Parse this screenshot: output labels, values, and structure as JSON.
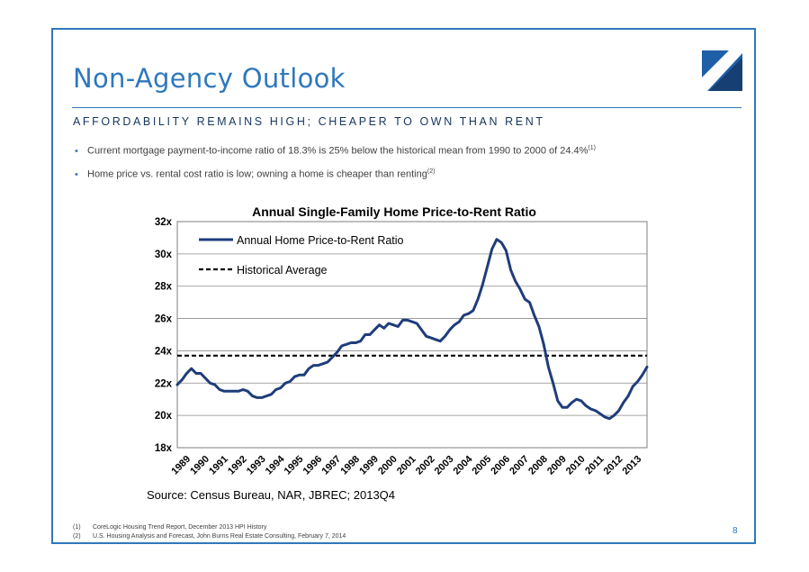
{
  "slide": {
    "title": "Non-Agency Outlook",
    "subtitle": "AFFORDABILITY REMAINS HIGH; CHEAPER TO OWN THAN RENT",
    "bullets": [
      {
        "text": "Current mortgage payment-to-income ratio of 18.3% is 25% below the historical mean from 1990 to 2000 of 24.4%",
        "ref": "(1)"
      },
      {
        "text": "Home price vs. rental cost ratio is low; owning a home is cheaper than renting",
        "ref": "(2)"
      }
    ],
    "footnotes": [
      {
        "num": "(1)",
        "text": "CoreLogic Housing Trend Report, December 2013 HPI History"
      },
      {
        "num": "(2)",
        "text": "U.S. Housing Analysis and Forecast, John Burns Real Estate Consulting, February 7, 2014"
      }
    ],
    "page_number": "8",
    "colors": {
      "accent": "#2f78bd",
      "navy": "#17365d",
      "series": "#1f3d7a"
    }
  },
  "chart_data": {
    "type": "line",
    "title": "Annual Single-Family Home Price-to-Rent Ratio",
    "source": "Source: Census Bureau, NAR, JBREC; 2013Q4",
    "xlabel": "",
    "ylabel": "",
    "ylim": [
      18,
      32
    ],
    "yticks": [
      "18x",
      "20x",
      "22x",
      "24x",
      "26x",
      "28x",
      "30x",
      "32x"
    ],
    "ytick_values": [
      18,
      20,
      22,
      24,
      26,
      28,
      30,
      32
    ],
    "xlim": [
      1989,
      2014
    ],
    "xticks": [
      "1989",
      "1990",
      "1991",
      "1992",
      "1993",
      "1994",
      "1995",
      "1996",
      "1997",
      "1998",
      "1999",
      "2000",
      "2001",
      "2002",
      "2003",
      "2004",
      "2005",
      "2006",
      "2007",
      "2008",
      "2009",
      "2010",
      "2011",
      "2012",
      "2013"
    ],
    "grid": true,
    "legend_position": "top-left",
    "historical_average": {
      "name": "Historical Average",
      "value": 23.7
    },
    "series": [
      {
        "name": "Annual Home Price-to-Rent Ratio",
        "x": [
          1989.0,
          1989.25,
          1989.5,
          1989.75,
          1990.0,
          1990.25,
          1990.5,
          1990.75,
          1991.0,
          1991.25,
          1991.5,
          1991.75,
          1992.0,
          1992.25,
          1992.5,
          1992.75,
          1993.0,
          1993.25,
          1993.5,
          1993.75,
          1994.0,
          1994.25,
          1994.5,
          1994.75,
          1995.0,
          1995.25,
          1995.5,
          1995.75,
          1996.0,
          1996.25,
          1996.5,
          1996.75,
          1997.0,
          1997.25,
          1997.5,
          1997.75,
          1998.0,
          1998.25,
          1998.5,
          1998.75,
          1999.0,
          1999.25,
          1999.5,
          1999.75,
          2000.0,
          2000.25,
          2000.5,
          2000.75,
          2001.0,
          2001.25,
          2001.5,
          2001.75,
          2002.0,
          2002.25,
          2002.5,
          2002.75,
          2003.0,
          2003.25,
          2003.5,
          2003.75,
          2004.0,
          2004.25,
          2004.5,
          2004.75,
          2005.0,
          2005.25,
          2005.5,
          2005.75,
          2006.0,
          2006.25,
          2006.5,
          2006.75,
          2007.0,
          2007.25,
          2007.5,
          2007.75,
          2008.0,
          2008.25,
          2008.5,
          2008.75,
          2009.0,
          2009.25,
          2009.5,
          2009.75,
          2010.0,
          2010.25,
          2010.5,
          2010.75,
          2011.0,
          2011.25,
          2011.5,
          2011.75,
          2012.0,
          2012.25,
          2012.5,
          2012.75,
          2013.0,
          2013.25,
          2013.5,
          2013.75,
          2014.0
        ],
        "y": [
          21.9,
          22.2,
          22.6,
          22.9,
          22.6,
          22.6,
          22.3,
          22.0,
          21.9,
          21.6,
          21.5,
          21.5,
          21.5,
          21.5,
          21.6,
          21.5,
          21.2,
          21.1,
          21.1,
          21.2,
          21.3,
          21.6,
          21.7,
          22.0,
          22.1,
          22.4,
          22.5,
          22.5,
          22.9,
          23.1,
          23.1,
          23.2,
          23.3,
          23.6,
          23.9,
          24.3,
          24.4,
          24.5,
          24.5,
          24.6,
          25.0,
          25.0,
          25.3,
          25.6,
          25.4,
          25.7,
          25.6,
          25.5,
          25.9,
          25.9,
          25.8,
          25.7,
          25.3,
          24.9,
          24.8,
          24.7,
          24.6,
          24.9,
          25.3,
          25.6,
          25.8,
          26.2,
          26.3,
          26.5,
          27.2,
          28.1,
          29.2,
          30.3,
          30.9,
          30.7,
          30.2,
          29.0,
          28.3,
          27.8,
          27.2,
          27.0,
          26.2,
          25.5,
          24.4,
          23.0,
          22.0,
          20.9,
          20.5,
          20.5,
          20.8,
          21.0,
          20.9,
          20.6,
          20.4,
          20.3,
          20.1,
          19.9,
          19.8,
          20.0,
          20.3,
          20.8,
          21.2,
          21.8,
          22.1,
          22.5,
          23.0
        ]
      }
    ]
  }
}
